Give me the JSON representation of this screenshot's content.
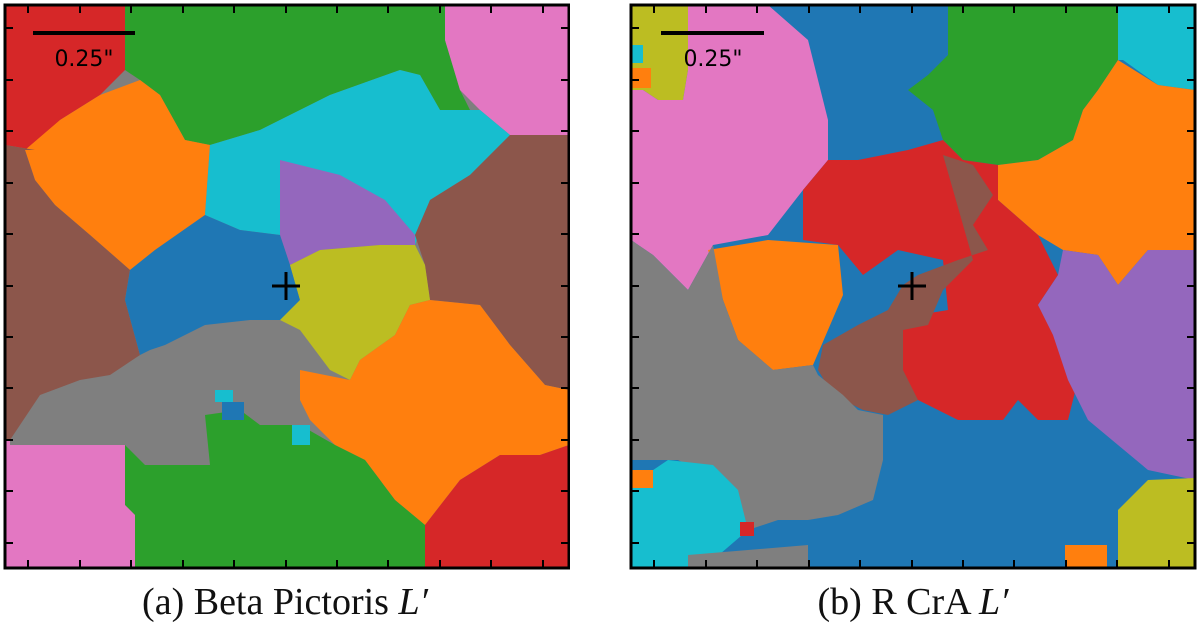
{
  "panels": [
    {
      "caption_label": "(a) Beta Pictoris ",
      "caption_math": "L′",
      "scalebar_label": "0.25\""
    },
    {
      "caption_label": "(b) R CrA ",
      "caption_math": "L′",
      "scalebar_label": "0.25\""
    }
  ],
  "colors": {
    "blue": "#1f77b4",
    "orange": "#ff7f0e",
    "green": "#2ca02c",
    "red": "#d62728",
    "purple": "#9467bd",
    "brown": "#8c564b",
    "pink": "#e377c2",
    "gray": "#7f7f7f",
    "olive": "#bcbd22",
    "cyan": "#17becf"
  }
}
